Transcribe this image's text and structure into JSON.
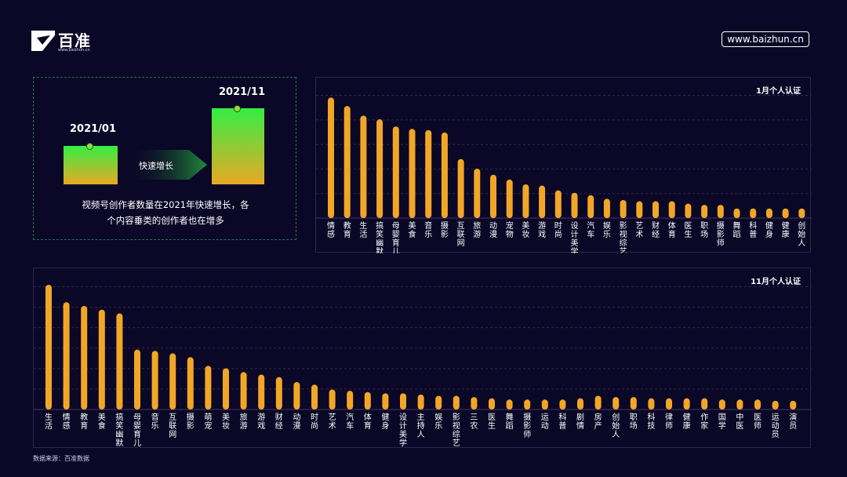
{
  "brand": {
    "name": "百准",
    "url_small": "www.baizhun.cn",
    "site": "www.baizhun.cn"
  },
  "growth": {
    "from_label": "2021/01",
    "to_label": "2021/11",
    "arrow_label": "快速增长",
    "caption_line1": "视频号创作者数量在2021年快速增长，各",
    "caption_line2": "个内容垂类的创作者也在增多"
  },
  "source": "数据来源：百准数据",
  "colors": {
    "bar": "#f2a628",
    "background": "#0b0726",
    "grid": "#2c2858"
  },
  "chart_data": [
    {
      "type": "bar",
      "title": "1月个人认证",
      "categories": [
        "情感",
        "教育",
        "生活",
        "搞笑幽默",
        "母婴育儿",
        "美食",
        "音乐",
        "摄影",
        "互联网",
        "旅游",
        "动漫",
        "宠物",
        "美妆",
        "游戏",
        "时尚",
        "设计美学",
        "汽车",
        "娱乐",
        "影视综艺",
        "艺术",
        "财经",
        "体育",
        "医生",
        "职场",
        "摄影师",
        "舞蹈",
        "科普",
        "健身",
        "健康",
        "创始人"
      ],
      "values": [
        100,
        93,
        85,
        82,
        76,
        74,
        73,
        71,
        49,
        41,
        36,
        32,
        28,
        27,
        23,
        21,
        19,
        16,
        15,
        14,
        14,
        14,
        12,
        11,
        11,
        8,
        8,
        8,
        8,
        8
      ],
      "ylim": [
        0,
        110
      ],
      "grid": true,
      "legend": "none"
    },
    {
      "type": "bar",
      "title": "11月个人认证",
      "categories": [
        "生活",
        "情感",
        "教育",
        "美食",
        "搞笑幽默",
        "母婴育儿",
        "音乐",
        "互联网",
        "摄影",
        "萌宠",
        "美妆",
        "旅游",
        "游戏",
        "财经",
        "动漫",
        "时尚",
        "艺术",
        "汽车",
        "体育",
        "健身",
        "设计美学",
        "主持人",
        "娱乐",
        "影视综艺",
        "三农",
        "医生",
        "舞蹈",
        "摄影师",
        "运动",
        "科普",
        "剧情",
        "房产",
        "创始人",
        "职场",
        "科技",
        "律师",
        "健康",
        "作家",
        "国学",
        "中医",
        "医师",
        "运动员",
        "演员"
      ],
      "values": [
        100,
        86,
        83,
        80,
        77,
        48,
        47,
        45,
        42,
        35,
        33,
        30,
        28,
        26,
        22,
        20,
        16,
        15,
        14,
        13,
        13,
        12,
        11,
        11,
        10,
        9,
        8,
        8,
        8,
        8,
        9,
        11,
        10,
        10,
        9,
        9,
        9,
        9,
        8,
        8,
        8,
        7,
        7
      ],
      "ylim": [
        0,
        105
      ],
      "grid": true,
      "legend": "none"
    }
  ]
}
